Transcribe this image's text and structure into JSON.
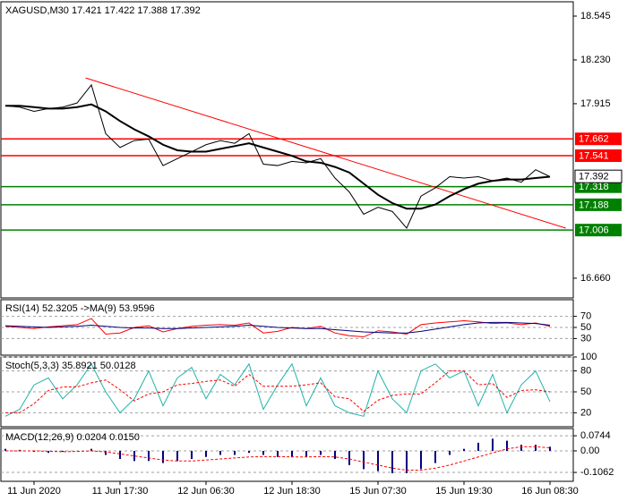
{
  "chart_data": [
    {
      "type": "line",
      "title": "XAGUSD,M30  17.421 17.422 17.388 17.392",
      "categories": [
        null,
        null,
        "11 Jun 2020",
        null,
        null,
        null,
        null,
        null,
        "11 Jun 17:30",
        null,
        null,
        null,
        null,
        null,
        "12 Jun 06:30",
        null,
        null,
        null,
        null,
        null,
        "12 Jun 18:30",
        null,
        null,
        null,
        null,
        null,
        "15 Jun 07:30",
        null,
        null,
        null,
        null,
        null,
        "15 Jun 19:30",
        null,
        null,
        null,
        null,
        null,
        "16 Jun 08:30"
      ],
      "series": [
        {
          "color": "#000000",
          "style": "solid",
          "width": 1,
          "values": [
            17.9,
            17.89,
            17.86,
            17.88,
            17.89,
            17.92,
            18.05,
            17.7,
            17.6,
            17.65,
            17.66,
            17.47,
            17.52,
            17.57,
            17.62,
            17.65,
            17.63,
            17.7,
            17.48,
            17.47,
            17.5,
            17.49,
            17.52,
            17.38,
            17.28,
            17.12,
            17.17,
            17.14,
            17.02,
            17.25,
            17.31,
            17.39,
            17.38,
            17.39,
            17.36,
            17.38,
            17.35,
            17.44,
            17.39
          ]
        },
        {
          "color": "#000000",
          "style": "solid",
          "width": 2,
          "values": [
            17.9,
            17.9,
            17.89,
            17.88,
            17.88,
            17.89,
            17.91,
            17.86,
            17.79,
            17.73,
            17.68,
            17.62,
            17.58,
            17.57,
            17.57,
            17.59,
            17.61,
            17.63,
            17.6,
            17.57,
            17.54,
            17.5,
            17.49,
            17.46,
            17.42,
            17.34,
            17.26,
            17.2,
            17.16,
            17.16,
            17.19,
            17.25,
            17.3,
            17.34,
            17.36,
            17.37,
            17.37,
            17.38,
            17.39
          ]
        }
      ],
      "trendline": {
        "color": "#ff0000",
        "x": [
          5.6,
          39.1
        ],
        "values": [
          18.1,
          17.02
        ]
      },
      "levels": [
        {
          "value": 17.662,
          "color": "#ff0000"
        },
        {
          "value": 17.541,
          "color": "#ff0000"
        },
        {
          "value": 17.318,
          "color": "#008000"
        },
        {
          "value": 17.188,
          "color": "#008000"
        },
        {
          "value": 17.006,
          "color": "#008000"
        }
      ],
      "current_price": 17.392,
      "ylim": [
        16.518,
        18.648
      ],
      "yticks": [
        18.545,
        {
          "value": 18.23,
          "label": "18.230"
        },
        17.915,
        {
          "value": 16.66,
          "label": "16.660"
        }
      ],
      "grid": false
    },
    {
      "type": "line",
      "title": "RSI(14) 52.3205  ->MA(9) 53.9596",
      "series": [
        {
          "color": "#ff0000",
          "style": "solid",
          "width": 1,
          "values": [
            52,
            50,
            48,
            51,
            53,
            55,
            66,
            38,
            40,
            50,
            53,
            42,
            48,
            52,
            54,
            55,
            54,
            58,
            40,
            43,
            50,
            48,
            52,
            40,
            35,
            33,
            44,
            42,
            38,
            55,
            58,
            60,
            62,
            60,
            57,
            58,
            55,
            58,
            52
          ]
        },
        {
          "color": "#000080",
          "style": "solid",
          "width": 1,
          "values": [
            53,
            52,
            51,
            50,
            51,
            52,
            54,
            52,
            50,
            49,
            49,
            48,
            48,
            49,
            50,
            51,
            52,
            54,
            52,
            50,
            49,
            48,
            48,
            46,
            44,
            42,
            41,
            40,
            40,
            43,
            47,
            51,
            55,
            58,
            59,
            59,
            58,
            57,
            54
          ]
        }
      ],
      "ylim": [
        0,
        100
      ],
      "yticks": [
        30,
        50,
        70
      ],
      "grid": true
    },
    {
      "type": "line",
      "title": "Stoch(5,3,3) 35.8921 50.0128",
      "series": [
        {
          "color": "#20b2aa",
          "style": "solid",
          "width": 1,
          "values": [
            15,
            25,
            60,
            70,
            40,
            60,
            90,
            50,
            20,
            40,
            80,
            30,
            70,
            85,
            40,
            75,
            60,
            90,
            25,
            60,
            90,
            30,
            70,
            30,
            20,
            15,
            80,
            40,
            20,
            80,
            90,
            70,
            80,
            30,
            75,
            20,
            60,
            80,
            36
          ]
        },
        {
          "color": "#ff0000",
          "style": "dashed",
          "width": 1,
          "values": [
            20,
            20,
            33,
            52,
            57,
            57,
            63,
            67,
            53,
            37,
            47,
            50,
            60,
            62,
            65,
            67,
            58,
            75,
            58,
            58,
            58,
            60,
            63,
            43,
            40,
            22,
            38,
            45,
            47,
            47,
            63,
            80,
            80,
            60,
            62,
            42,
            52,
            53,
            50
          ]
        }
      ],
      "ylim": [
        0,
        100
      ],
      "yticks": [
        20,
        50,
        80,
        100
      ],
      "grid": true
    },
    {
      "type": "line",
      "title": "MACD(12,26,9) 0.0204 0.0150",
      "series": [
        {
          "color": "#000080",
          "style": "histogram",
          "width": 1,
          "values": [
            0.01,
            0.005,
            -0.005,
            -0.01,
            -0.005,
            0.0,
            0.01,
            -0.02,
            -0.04,
            -0.05,
            -0.05,
            -0.06,
            -0.05,
            -0.04,
            -0.03,
            -0.02,
            -0.02,
            -0.01,
            -0.02,
            -0.03,
            -0.03,
            -0.03,
            -0.02,
            -0.04,
            -0.07,
            -0.09,
            -0.1,
            -0.11,
            -0.11,
            -0.09,
            -0.06,
            -0.02,
            0.01,
            0.04,
            0.06,
            0.05,
            0.03,
            0.03,
            0.0204
          ]
        },
        {
          "color": "#ff0000",
          "style": "dashed",
          "width": 1,
          "values": [
            0.0,
            0.0,
            0.0,
            -0.002,
            -0.004,
            -0.003,
            0.0,
            -0.005,
            -0.015,
            -0.025,
            -0.035,
            -0.045,
            -0.05,
            -0.05,
            -0.045,
            -0.04,
            -0.035,
            -0.03,
            -0.028,
            -0.028,
            -0.03,
            -0.03,
            -0.028,
            -0.03,
            -0.04,
            -0.055,
            -0.07,
            -0.085,
            -0.095,
            -0.095,
            -0.085,
            -0.07,
            -0.05,
            -0.03,
            -0.01,
            0.01,
            0.02,
            0.02,
            0.015
          ]
        }
      ],
      "ylim": [
        -0.15,
        0.11
      ],
      "yticks": [
        0.0744,
        {
          "value": 0,
          "label": "0.00"
        },
        -0.1062
      ],
      "grid": true
    }
  ]
}
